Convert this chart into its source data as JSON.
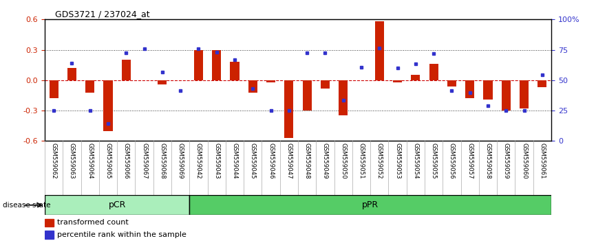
{
  "title": "GDS3721 / 237024_at",
  "samples": [
    "GSM559062",
    "GSM559063",
    "GSM559064",
    "GSM559065",
    "GSM559066",
    "GSM559067",
    "GSM559068",
    "GSM559069",
    "GSM559042",
    "GSM559043",
    "GSM559044",
    "GSM559045",
    "GSM559046",
    "GSM559047",
    "GSM559048",
    "GSM559049",
    "GSM559050",
    "GSM559051",
    "GSM559052",
    "GSM559053",
    "GSM559054",
    "GSM559055",
    "GSM559056",
    "GSM559057",
    "GSM559058",
    "GSM559059",
    "GSM559060",
    "GSM559061"
  ],
  "red_bars": [
    -0.18,
    0.12,
    -0.12,
    -0.5,
    0.2,
    0.0,
    -0.04,
    0.0,
    0.3,
    0.3,
    0.18,
    -0.12,
    -0.02,
    -0.57,
    -0.3,
    -0.08,
    -0.35,
    0.0,
    0.58,
    -0.02,
    0.05,
    0.16,
    -0.06,
    -0.18,
    -0.19,
    -0.3,
    -0.28,
    -0.07
  ],
  "blue_vals": [
    -0.3,
    0.17,
    -0.3,
    -0.43,
    0.27,
    0.31,
    0.08,
    -0.1,
    0.31,
    0.28,
    0.2,
    -0.08,
    -0.3,
    -0.3,
    0.27,
    0.27,
    -0.2,
    0.13,
    0.32,
    0.12,
    0.16,
    0.26,
    -0.1,
    -0.12,
    -0.25,
    -0.3,
    -0.3,
    0.05
  ],
  "pCR_count": 8,
  "pPR_count": 20,
  "ylim_left": [
    -0.6,
    0.6
  ],
  "yticks_left": [
    -0.6,
    -0.3,
    0.0,
    0.3,
    0.6
  ],
  "right_labels": [
    "0",
    "25",
    "50",
    "75",
    "100%"
  ],
  "right_tick_pos": [
    -0.6,
    -0.3,
    0.0,
    0.3,
    0.6
  ],
  "bar_color": "#cc2200",
  "blue_color": "#3333cc",
  "pcr_color": "#aaeebb",
  "ppr_color": "#55cc66",
  "bg_color": "#ffffff",
  "disease_label": "disease state",
  "pcr_label": "pCR",
  "ppr_label": "pPR",
  "legend1": "transformed count",
  "legend2": "percentile rank within the sample"
}
